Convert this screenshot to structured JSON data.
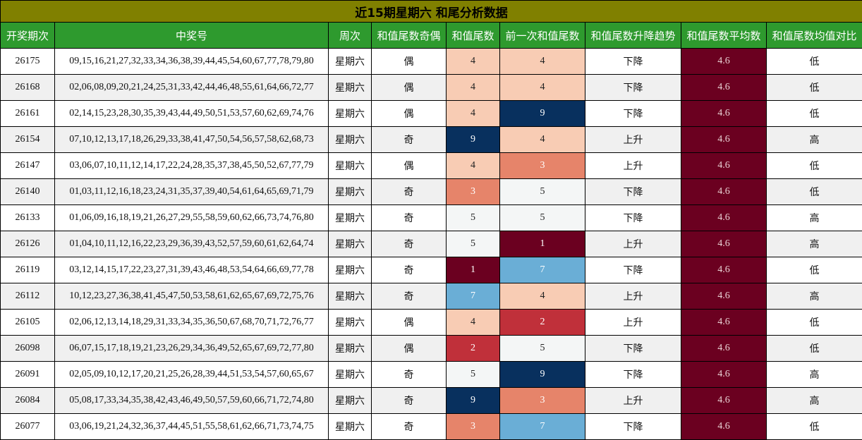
{
  "title": "近15期星期六 和尾分析数据",
  "headers": [
    "开奖期次",
    "中奖号",
    "周次",
    "和值尾数奇偶",
    "和值尾数",
    "前一次和值尾数",
    "和值尾数升降趋势",
    "和值尾数平均数",
    "和值尾数均值对比"
  ],
  "colors": {
    "1": "#6b0020",
    "2": "#c0303a",
    "3": "#e6846a",
    "4": "#f8ccb4",
    "5": "#f4f6f6",
    "7": "#6aaed6",
    "9": "#08305e",
    "avg": "#6b0020"
  },
  "rows": [
    {
      "period": "26175",
      "numbers": "09,15,16,21,27,32,33,34,36,38,39,44,45,54,60,67,77,78,79,80",
      "week": "星期六",
      "parity": "偶",
      "tail": "4",
      "prev_tail": "4",
      "trend": "下降",
      "avg": "4.6",
      "compare": "低"
    },
    {
      "period": "26168",
      "numbers": "02,06,08,09,20,21,24,25,31,33,42,44,46,48,55,61,64,66,72,77",
      "week": "星期六",
      "parity": "偶",
      "tail": "4",
      "prev_tail": "4",
      "trend": "下降",
      "avg": "4.6",
      "compare": "低"
    },
    {
      "period": "26161",
      "numbers": "02,14,15,23,28,30,35,39,43,44,49,50,51,53,57,60,62,69,74,76",
      "week": "星期六",
      "parity": "偶",
      "tail": "4",
      "prev_tail": "9",
      "trend": "下降",
      "avg": "4.6",
      "compare": "低"
    },
    {
      "period": "26154",
      "numbers": "07,10,12,13,17,18,26,29,33,38,41,47,50,54,56,57,58,62,68,73",
      "week": "星期六",
      "parity": "奇",
      "tail": "9",
      "prev_tail": "4",
      "trend": "上升",
      "avg": "4.6",
      "compare": "高"
    },
    {
      "period": "26147",
      "numbers": "03,06,07,10,11,12,14,17,22,24,28,35,37,38,45,50,52,67,77,79",
      "week": "星期六",
      "parity": "偶",
      "tail": "4",
      "prev_tail": "3",
      "trend": "上升",
      "avg": "4.6",
      "compare": "低"
    },
    {
      "period": "26140",
      "numbers": "01,03,11,12,16,18,23,24,31,35,37,39,40,54,61,64,65,69,71,79",
      "week": "星期六",
      "parity": "奇",
      "tail": "3",
      "prev_tail": "5",
      "trend": "下降",
      "avg": "4.6",
      "compare": "低"
    },
    {
      "period": "26133",
      "numbers": "01,06,09,16,18,19,21,26,27,29,55,58,59,60,62,66,73,74,76,80",
      "week": "星期六",
      "parity": "奇",
      "tail": "5",
      "prev_tail": "5",
      "trend": "下降",
      "avg": "4.6",
      "compare": "高"
    },
    {
      "period": "26126",
      "numbers": "01,04,10,11,12,16,22,23,29,36,39,43,52,57,59,60,61,62,64,74",
      "week": "星期六",
      "parity": "奇",
      "tail": "5",
      "prev_tail": "1",
      "trend": "上升",
      "avg": "4.6",
      "compare": "高"
    },
    {
      "period": "26119",
      "numbers": "03,12,14,15,17,22,23,27,31,39,43,46,48,53,54,64,66,69,77,78",
      "week": "星期六",
      "parity": "奇",
      "tail": "1",
      "prev_tail": "7",
      "trend": "下降",
      "avg": "4.6",
      "compare": "低"
    },
    {
      "period": "26112",
      "numbers": "10,12,23,27,36,38,41,45,47,50,53,58,61,62,65,67,69,72,75,76",
      "week": "星期六",
      "parity": "奇",
      "tail": "7",
      "prev_tail": "4",
      "trend": "上升",
      "avg": "4.6",
      "compare": "高"
    },
    {
      "period": "26105",
      "numbers": "02,06,12,13,14,18,29,31,33,34,35,36,50,67,68,70,71,72,76,77",
      "week": "星期六",
      "parity": "偶",
      "tail": "4",
      "prev_tail": "2",
      "trend": "上升",
      "avg": "4.6",
      "compare": "低"
    },
    {
      "period": "26098",
      "numbers": "06,07,15,17,18,19,21,23,26,29,34,36,49,52,65,67,69,72,77,80",
      "week": "星期六",
      "parity": "偶",
      "tail": "2",
      "prev_tail": "5",
      "trend": "下降",
      "avg": "4.6",
      "compare": "低"
    },
    {
      "period": "26091",
      "numbers": "02,05,09,10,12,17,20,21,25,26,28,39,44,51,53,54,57,60,65,67",
      "week": "星期六",
      "parity": "奇",
      "tail": "5",
      "prev_tail": "9",
      "trend": "下降",
      "avg": "4.6",
      "compare": "高"
    },
    {
      "period": "26084",
      "numbers": "05,08,17,33,34,35,38,42,43,46,49,50,57,59,60,66,71,72,74,80",
      "week": "星期六",
      "parity": "奇",
      "tail": "9",
      "prev_tail": "3",
      "trend": "上升",
      "avg": "4.6",
      "compare": "高"
    },
    {
      "period": "26077",
      "numbers": "03,06,19,21,24,32,36,37,44,45,51,55,58,61,62,66,71,73,74,75",
      "week": "星期六",
      "parity": "奇",
      "tail": "3",
      "prev_tail": "7",
      "trend": "下降",
      "avg": "4.6",
      "compare": "低"
    }
  ]
}
